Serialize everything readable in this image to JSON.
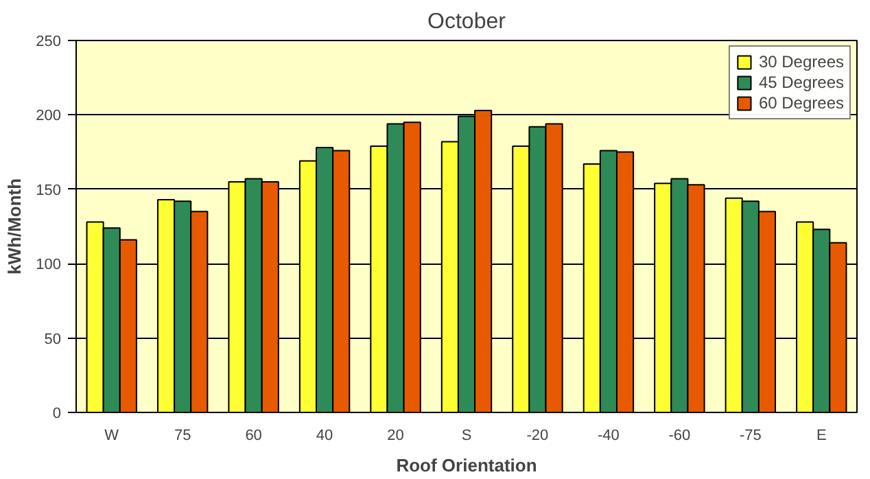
{
  "chart_data": {
    "type": "bar",
    "title": "October",
    "xlabel": "Roof Orientation",
    "ylabel": "kWh/Month",
    "categories": [
      "W",
      "75",
      "60",
      "40",
      "20",
      "S",
      "-20",
      "-40",
      "-60",
      "-75",
      "E"
    ],
    "series": [
      {
        "name": "30 Degrees",
        "color": "#ffff33",
        "values": [
          128,
          143,
          155,
          169,
          179,
          182,
          179,
          167,
          154,
          144,
          128
        ]
      },
      {
        "name": "45 Degrees",
        "color": "#2e8b57",
        "values": [
          124,
          142,
          157,
          178,
          194,
          199,
          192,
          176,
          157,
          142,
          123
        ]
      },
      {
        "name": "60 Degrees",
        "color": "#e85a00",
        "values": [
          116,
          135,
          155,
          176,
          195,
          203,
          194,
          175,
          153,
          135,
          114
        ]
      }
    ],
    "ylim": [
      0,
      250
    ],
    "yticks": [
      0,
      50,
      100,
      150,
      200,
      250
    ],
    "grid": "y",
    "legend": "top right"
  }
}
